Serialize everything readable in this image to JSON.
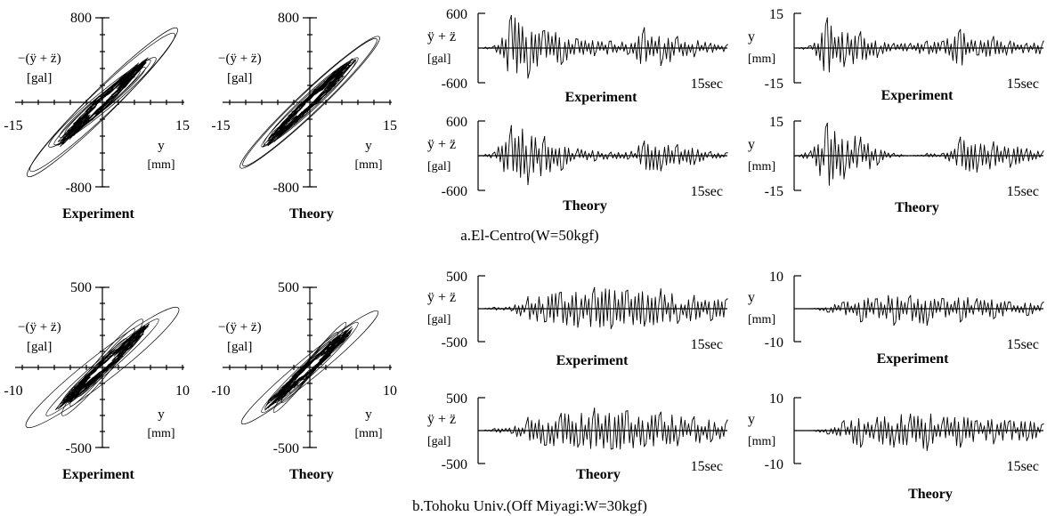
{
  "figure": {
    "caption_a": "a.El-Centro(W=50kgf)",
    "caption_b": "b.Tohoku Univ.(Off Miyagi:W=30kgf)"
  },
  "chart_data": [
    {
      "id": "a-hyst-exp",
      "type": "scatter",
      "kind": "hysteresis",
      "title": "Experiment",
      "ylabel": "−(ÿ + z̈)",
      "yunit": "[gal]",
      "xlabel": "y",
      "xunit": "[mm]",
      "xlim": [
        -15,
        15
      ],
      "ylim": [
        -800,
        800
      ],
      "tick_labels": {
        "x": [
          "-15",
          "15"
        ],
        "y": [
          "800",
          "-800"
        ]
      },
      "loop_peaks": [
        {
          "x": 14,
          "y": 700
        },
        {
          "x": -13.5,
          "y": -650
        },
        {
          "x": 10,
          "y": 420
        },
        {
          "x": -9,
          "y": -400
        },
        {
          "x": 8,
          "y": 330
        },
        {
          "x": -7,
          "y": -300
        }
      ]
    },
    {
      "id": "a-hyst-theo",
      "type": "scatter",
      "kind": "hysteresis",
      "title": "Theory",
      "ylabel": "−(ÿ + z̈)",
      "yunit": "[gal]",
      "xlabel": "y",
      "xunit": "[mm]",
      "xlim": [
        -15,
        15
      ],
      "ylim": [
        -800,
        800
      ],
      "tick_labels": {
        "x": [
          "-15",
          "15"
        ],
        "y": [
          "800",
          "-800"
        ]
      },
      "loop_peaks": [
        {
          "x": 13,
          "y": 620
        },
        {
          "x": -12.5,
          "y": -600
        },
        {
          "x": 9,
          "y": 420
        },
        {
          "x": -8.5,
          "y": -400
        },
        {
          "x": 6,
          "y": 280
        },
        {
          "x": -5.5,
          "y": -260
        }
      ]
    },
    {
      "id": "a-acc-exp",
      "type": "line",
      "title": "Experiment",
      "ylabel": "ÿ + z̈",
      "yunit": "[gal]",
      "xlim": [
        0,
        15
      ],
      "ylim": [
        -600,
        600
      ],
      "tick_labels": {
        "x": [
          "15sec"
        ],
        "y": [
          "600",
          "-600"
        ]
      },
      "x": [
        0,
        1,
        2,
        3,
        4,
        5,
        6,
        7,
        8,
        9,
        10,
        11,
        12,
        13,
        14,
        15
      ],
      "y": [
        0,
        40,
        560,
        -520,
        300,
        -280,
        150,
        -130,
        120,
        -110,
        350,
        -300,
        200,
        -150,
        80,
        60
      ]
    },
    {
      "id": "a-disp-exp",
      "type": "line",
      "title": "Experiment",
      "ylabel": "y",
      "yunit": "[mm]",
      "xlim": [
        0,
        15
      ],
      "ylim": [
        -15,
        15
      ],
      "tick_labels": {
        "x": [
          "15sec"
        ],
        "y": [
          "15",
          "-15"
        ]
      },
      "x": [
        0,
        1,
        2,
        3,
        4,
        5,
        6,
        7,
        8,
        9,
        10,
        11,
        12,
        13,
        14,
        15
      ],
      "y": [
        0,
        1,
        13,
        -8,
        7,
        -4,
        2,
        2,
        3,
        3,
        8,
        -3,
        5,
        3,
        2,
        3
      ]
    },
    {
      "id": "a-acc-theo",
      "type": "line",
      "title": "Theory",
      "ylabel": "ÿ + z̈",
      "yunit": "[gal]",
      "xlim": [
        0,
        15
      ],
      "ylim": [
        -600,
        600
      ],
      "tick_labels": {
        "x": [
          "15sec"
        ],
        "y": [
          "600",
          "-600"
        ]
      },
      "x": [
        0,
        1,
        2,
        3,
        4,
        5,
        6,
        7,
        8,
        9,
        10,
        11,
        12,
        13,
        14,
        15
      ],
      "y": [
        0,
        60,
        520,
        -500,
        330,
        -250,
        120,
        -90,
        60,
        -60,
        250,
        -260,
        190,
        -150,
        70,
        50
      ]
    },
    {
      "id": "a-disp-theo",
      "type": "line",
      "title": "Theory",
      "ylabel": "y",
      "yunit": "[mm]",
      "xlim": [
        0,
        15
      ],
      "ylim": [
        -15,
        15
      ],
      "tick_labels": {
        "x": [
          "15sec"
        ],
        "y": [
          "15",
          "-15"
        ]
      },
      "x": [
        0,
        1,
        2,
        3,
        4,
        5,
        6,
        7,
        8,
        9,
        10,
        11,
        12,
        13,
        14,
        15
      ],
      "y": [
        0,
        2,
        14,
        -10,
        8,
        -4,
        1,
        0,
        1,
        1,
        8,
        -7,
        6,
        -5,
        3,
        2
      ]
    },
    {
      "id": "b-hyst-exp",
      "type": "scatter",
      "kind": "hysteresis",
      "title": "Experiment",
      "ylabel": "−(ÿ + z̈)",
      "yunit": "[gal]",
      "xlabel": "y",
      "xunit": "[mm]",
      "xlim": [
        -10,
        10
      ],
      "ylim": [
        -500,
        500
      ],
      "tick_labels": {
        "x": [
          "-10",
          "10"
        ],
        "y": [
          "500",
          "-500"
        ]
      },
      "loop_peaks": [
        {
          "x": 5,
          "y": 300
        },
        {
          "x": -9.5,
          "y": -370
        },
        {
          "x": 4,
          "y": 240
        },
        {
          "x": -7,
          "y": -300
        },
        {
          "x": 3,
          "y": 180
        },
        {
          "x": -5,
          "y": -220
        }
      ]
    },
    {
      "id": "b-hyst-theo",
      "type": "scatter",
      "kind": "hysteresis",
      "title": "Theory",
      "ylabel": "−(ÿ + z̈)",
      "yunit": "[gal]",
      "xlabel": "y",
      "xunit": "[mm]",
      "xlim": [
        -10,
        10
      ],
      "ylim": [
        -500,
        500
      ],
      "tick_labels": {
        "x": [
          "-10",
          "10"
        ],
        "y": [
          "500",
          "-500"
        ]
      },
      "loop_peaks": [
        {
          "x": 4.5,
          "y": 280
        },
        {
          "x": -8.5,
          "y": -350
        },
        {
          "x": 3.5,
          "y": 220
        },
        {
          "x": -6,
          "y": -280
        },
        {
          "x": 2.5,
          "y": 160
        },
        {
          "x": -4,
          "y": -200
        }
      ]
    },
    {
      "id": "b-acc-exp",
      "type": "line",
      "title": "Experiment",
      "ylabel": "ÿ + z̈",
      "yunit": "[gal]",
      "xlim": [
        0,
        15
      ],
      "ylim": [
        -500,
        500
      ],
      "tick_labels": {
        "x": [
          "15sec"
        ],
        "y": [
          "500",
          "-500"
        ]
      },
      "x": [
        0,
        1,
        2,
        3,
        4,
        5,
        6,
        7,
        8,
        9,
        10,
        11,
        12,
        13,
        14,
        15
      ],
      "y": [
        0,
        20,
        -30,
        180,
        -200,
        250,
        -280,
        320,
        -300,
        280,
        -260,
        300,
        -220,
        200,
        -180,
        150
      ]
    },
    {
      "id": "b-disp-exp",
      "type": "line",
      "title": "Experiment",
      "ylabel": "y",
      "yunit": "[mm]",
      "xlim": [
        0,
        15
      ],
      "ylim": [
        -10,
        10
      ],
      "tick_labels": {
        "x": [
          "15sec"
        ],
        "y": [
          "10",
          "-10"
        ]
      },
      "x": [
        0,
        1,
        2,
        3,
        4,
        5,
        6,
        7,
        8,
        9,
        10,
        11,
        12,
        13,
        14,
        15
      ],
      "y": [
        0,
        0,
        -1,
        2,
        -4,
        3,
        -5,
        4,
        -5,
        3,
        -4,
        3,
        -3,
        2,
        -2,
        2
      ]
    },
    {
      "id": "b-acc-theo",
      "type": "line",
      "title": "Theory",
      "ylabel": "ÿ + z̈",
      "yunit": "[gal]",
      "xlim": [
        0,
        15
      ],
      "ylim": [
        -500,
        500
      ],
      "tick_labels": {
        "x": [
          "15sec"
        ],
        "y": [
          "500",
          "-500"
        ]
      },
      "x": [
        0,
        1,
        2,
        3,
        4,
        5,
        6,
        7,
        8,
        9,
        10,
        11,
        12,
        13,
        14,
        15
      ],
      "y": [
        0,
        30,
        -40,
        200,
        -220,
        260,
        -250,
        340,
        -280,
        300,
        -240,
        280,
        -230,
        210,
        -170,
        160
      ]
    },
    {
      "id": "b-disp-theo",
      "type": "line",
      "title": "Theory",
      "ylabel": "y",
      "yunit": "[mm]",
      "xlim": [
        0,
        15
      ],
      "ylim": [
        -10,
        10
      ],
      "tick_labels": {
        "x": [
          "15sec"
        ],
        "y": [
          "10",
          "-10"
        ]
      },
      "x": [
        0,
        1,
        2,
        3,
        4,
        5,
        6,
        7,
        8,
        9,
        10,
        11,
        12,
        13,
        14,
        15
      ],
      "y": [
        0,
        0,
        -1,
        3,
        -5,
        4,
        -5,
        5,
        -6,
        4,
        -5,
        3,
        -4,
        3,
        -3,
        2
      ]
    }
  ]
}
